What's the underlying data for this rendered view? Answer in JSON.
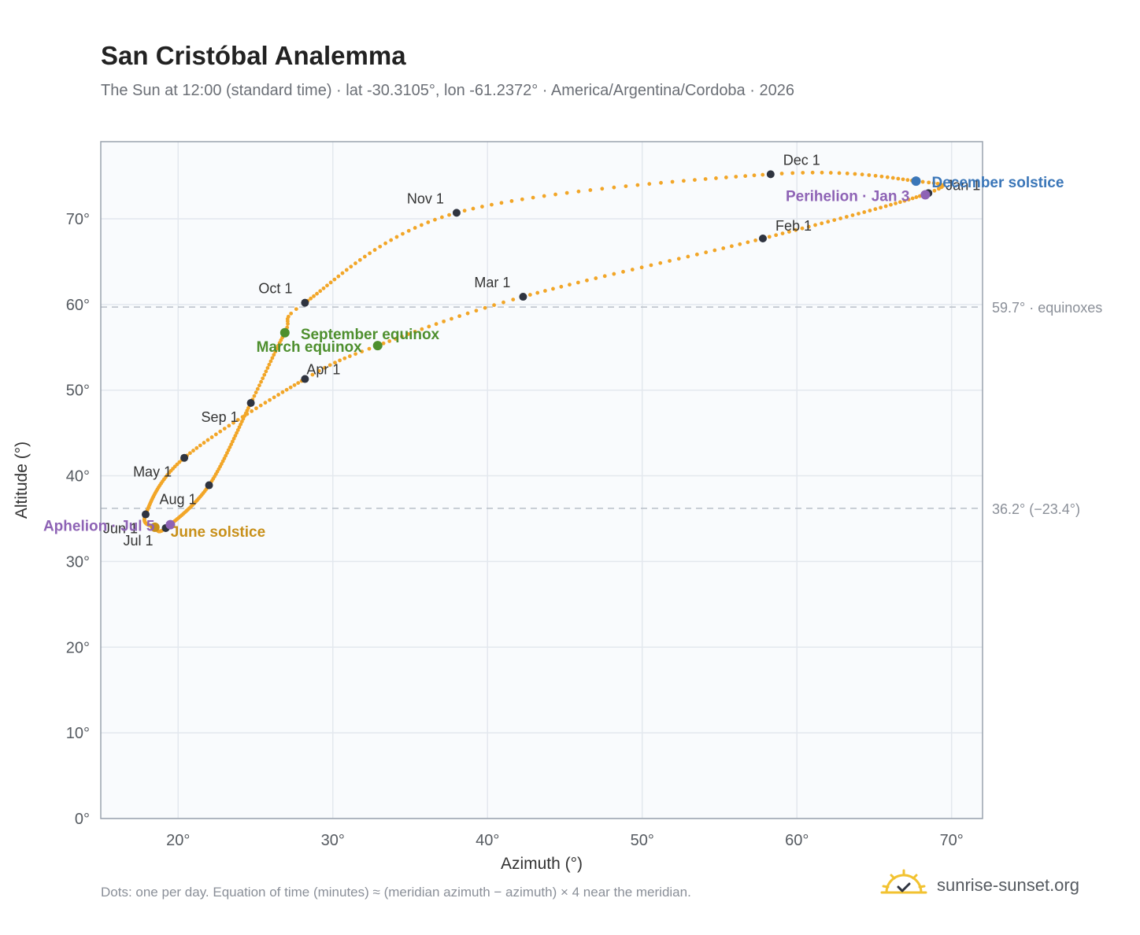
{
  "title": "San Cristóbal Analemma",
  "subtitle": "The Sun at 12:00 (standard time) · lat -30.3105°, lon -61.2372° · America/Argentina/Cordoba · 2026",
  "footnote": "Dots: one per day. Equation of time (minutes) ≈ (meridian azimuth − azimuth) × 4 near the meridian.",
  "brand": "sunrise-sunset.org",
  "chart_data": {
    "type": "scatter",
    "xlabel": "Azimuth (°)",
    "ylabel": "Altitude (°)",
    "xlim": [
      15,
      72
    ],
    "ylim": [
      0,
      79
    ],
    "xticks": [
      20,
      30,
      40,
      50,
      60,
      70
    ],
    "xtick_labels": [
      "20°",
      "30°",
      "40°",
      "50°",
      "60°",
      "70°"
    ],
    "yticks": [
      0,
      10,
      20,
      30,
      40,
      50,
      60,
      70
    ],
    "ytick_labels": [
      "0°",
      "10°",
      "20°",
      "30°",
      "40°",
      "50°",
      "60°",
      "70°"
    ],
    "grid": true,
    "reference_lines": [
      {
        "y": 59.7,
        "label": "59.7° · equinoxes"
      },
      {
        "y": 36.2,
        "label": "36.2° (−23.4°)"
      }
    ],
    "path_anchors": [
      {
        "day": 1,
        "az": 68.5,
        "alt": 73.0
      },
      {
        "day": 32,
        "az": 57.8,
        "alt": 67.7
      },
      {
        "day": 60,
        "az": 42.3,
        "alt": 60.9
      },
      {
        "day": 79,
        "az": 32.9,
        "alt": 55.2
      },
      {
        "day": 91,
        "az": 28.2,
        "alt": 51.3
      },
      {
        "day": 121,
        "az": 20.4,
        "alt": 42.1
      },
      {
        "day": 152,
        "az": 17.9,
        "alt": 35.5
      },
      {
        "day": 172,
        "az": 18.5,
        "alt": 34.0
      },
      {
        "day": 182,
        "az": 19.2,
        "alt": 33.9
      },
      {
        "day": 213,
        "az": 22.0,
        "alt": 38.9
      },
      {
        "day": 244,
        "az": 24.7,
        "alt": 48.5
      },
      {
        "day": 266,
        "az": 26.9,
        "alt": 56.7
      },
      {
        "day": 274,
        "az": 28.2,
        "alt": 60.2
      },
      {
        "day": 305,
        "az": 38.0,
        "alt": 70.7
      },
      {
        "day": 335,
        "az": 58.3,
        "alt": 75.2
      },
      {
        "day": 355,
        "az": 67.7,
        "alt": 74.4
      },
      {
        "day": 366,
        "az": 68.5,
        "alt": 73.0
      }
    ],
    "month_markers": [
      {
        "label": "Jan 1",
        "az": 68.5,
        "alt": 73.0
      },
      {
        "label": "Feb 1",
        "az": 57.8,
        "alt": 67.7
      },
      {
        "label": "Mar 1",
        "az": 42.3,
        "alt": 60.9
      },
      {
        "label": "Apr 1",
        "az": 28.2,
        "alt": 51.3
      },
      {
        "label": "May 1",
        "az": 20.4,
        "alt": 42.1
      },
      {
        "label": "Jun 1",
        "az": 17.9,
        "alt": 35.5
      },
      {
        "label": "Jul 1",
        "az": 19.2,
        "alt": 33.9
      },
      {
        "label": "Aug 1",
        "az": 22.0,
        "alt": 38.9
      },
      {
        "label": "Sep 1",
        "az": 24.7,
        "alt": 48.5
      },
      {
        "label": "Oct 1",
        "az": 28.2,
        "alt": 60.2
      },
      {
        "label": "Nov 1",
        "az": 38.0,
        "alt": 70.7
      },
      {
        "label": "Dec 1",
        "az": 58.3,
        "alt": 75.2
      }
    ],
    "events": [
      {
        "label": "March equinox",
        "az": 32.9,
        "alt": 55.2,
        "color": "#4e8f2e"
      },
      {
        "label": "September equinox",
        "az": 26.9,
        "alt": 56.7,
        "color": "#4e8f2e"
      },
      {
        "label": "June solstice",
        "az": 18.5,
        "alt": 34.0,
        "color": "#c8901a"
      },
      {
        "label": "December solstice",
        "az": 67.7,
        "alt": 74.4,
        "color": "#3a76b8"
      },
      {
        "label": "Aphelion · Jul 5",
        "az": 19.5,
        "alt": 34.3,
        "color": "#8e63b5"
      },
      {
        "label": "Perihelion · Jan 3",
        "az": 68.3,
        "alt": 72.8,
        "color": "#8e63b5"
      }
    ],
    "colors": {
      "path": "#f2a628",
      "marker": "#2f3440",
      "equinox": "#4e8f2e",
      "june_solstice": "#c8901a",
      "december_solstice": "#3a76b8",
      "apsis": "#8e63b5"
    }
  }
}
